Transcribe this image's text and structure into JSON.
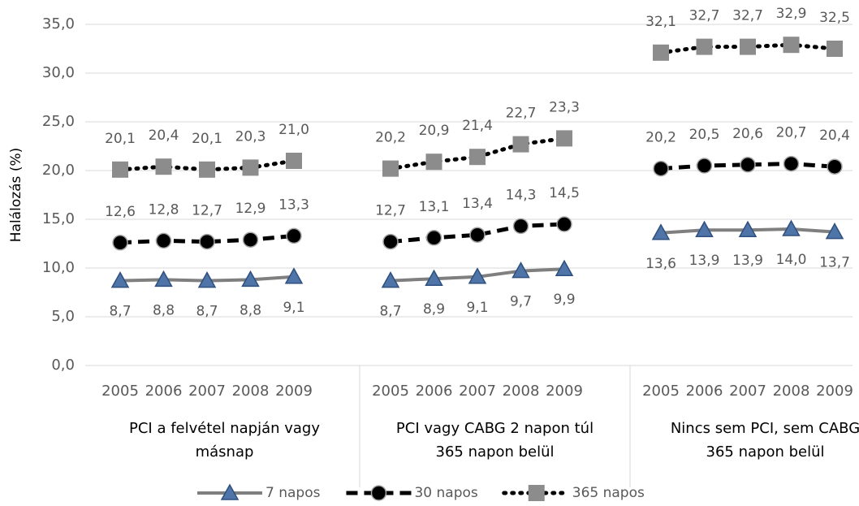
{
  "chart_data": {
    "type": "line",
    "y_label": "Halálozás (%)",
    "ylim": [
      0,
      35
    ],
    "yticks": [
      {
        "value": 0,
        "label": "0,0"
      },
      {
        "value": 5,
        "label": "5,0"
      },
      {
        "value": 10,
        "label": "10,0"
      },
      {
        "value": 15,
        "label": "15,0"
      },
      {
        "value": 20,
        "label": "20,0"
      },
      {
        "value": 25,
        "label": "25,0"
      },
      {
        "value": 30,
        "label": "30,0"
      },
      {
        "value": 35,
        "label": "35,0"
      }
    ],
    "grid": true,
    "legend": "bottom",
    "groups": [
      {
        "label": [
          "PCI a felvétel napján vagy",
          "másnap"
        ],
        "categories": [
          "2005",
          "2006",
          "2007",
          "2008",
          "2009"
        ]
      },
      {
        "label": [
          "PCI vagy CABG 2 napon túl",
          "365 napon belül"
        ],
        "categories": [
          "2005",
          "2006",
          "2007",
          "2008",
          "2009"
        ]
      },
      {
        "label": [
          "Nincs sem PCI, sem CABG",
          "365 napon belül"
        ],
        "categories": [
          "2005",
          "2006",
          "2007",
          "2008",
          "2009"
        ]
      }
    ],
    "series": [
      {
        "name": "7 napos",
        "color": "#7f7f7f",
        "marker": "triangle",
        "marker_color": "#4e74a8",
        "dash": "solid",
        "label_position": "below",
        "values": [
          8.7,
          8.8,
          8.7,
          8.8,
          9.1,
          8.7,
          8.9,
          9.1,
          9.7,
          9.9,
          13.6,
          13.9,
          13.9,
          14.0,
          13.7
        ],
        "value_labels": [
          "8,7",
          "8,8",
          "8,7",
          "8,8",
          "9,1",
          "8,7",
          "8,9",
          "9,1",
          "9,7",
          "9,9",
          "13,6",
          "13,9",
          "13,9",
          "14,0",
          "13,7"
        ]
      },
      {
        "name": "30 napos",
        "color": "#000000",
        "marker": "circle",
        "marker_color": "#000000",
        "dash": "dashed",
        "label_position": "above",
        "values": [
          12.6,
          12.8,
          12.7,
          12.9,
          13.3,
          12.7,
          13.1,
          13.4,
          14.3,
          14.5,
          20.2,
          20.5,
          20.6,
          20.7,
          20.4
        ],
        "value_labels": [
          "12,6",
          "12,8",
          "12,7",
          "12,9",
          "13,3",
          "12,7",
          "13,1",
          "13,4",
          "14,3",
          "14,5",
          "20,2",
          "20,5",
          "20,6",
          "20,7",
          "20,4"
        ]
      },
      {
        "name": "365 napos",
        "color": "#000000",
        "marker": "square",
        "marker_color": "#8c8c8c",
        "dash": "dotted",
        "label_position": "above",
        "values": [
          20.1,
          20.4,
          20.1,
          20.3,
          21.0,
          20.2,
          20.9,
          21.4,
          22.7,
          23.3,
          32.1,
          32.7,
          32.7,
          32.9,
          32.5
        ],
        "value_labels": [
          "20,1",
          "20,4",
          "20,1",
          "20,3",
          "21,0",
          "20,2",
          "20,9",
          "21,4",
          "22,7",
          "23,3",
          "32,1",
          "32,7",
          "32,7",
          "32,9",
          "32,5"
        ]
      }
    ]
  }
}
